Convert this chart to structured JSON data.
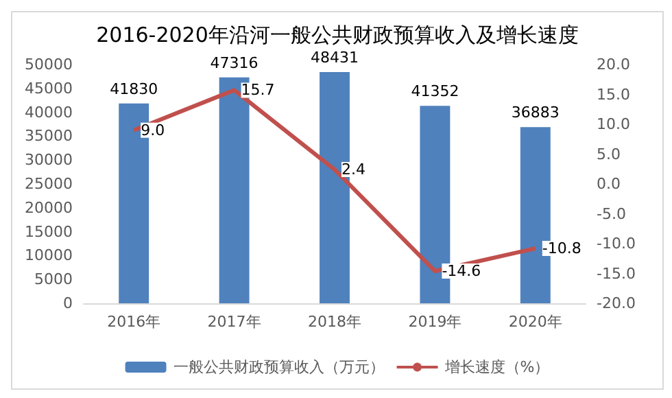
{
  "chart_data": {
    "type": "bar",
    "title": "2016-2020年沿河一般公共财政预算收入及增长速度",
    "categories": [
      "2016年",
      "2017年",
      "2018年",
      "2019年",
      "2020年"
    ],
    "series": [
      {
        "name": "一般公共财政预算收入（万元）",
        "color": "#4f81bd",
        "values": [
          41830,
          47316,
          48431,
          41352,
          36883
        ],
        "value_labels": [
          "41830",
          "47316",
          "48431",
          "41352",
          "36883"
        ]
      },
      {
        "name": "增长速度（%）",
        "type": "line",
        "axis": "y2",
        "color": "#c0504d",
        "values": [
          9.0,
          15.7,
          2.4,
          -14.6,
          -10.8
        ],
        "value_labels": [
          "9.0",
          "15.7",
          "2.4",
          "-14.6",
          "-10.8"
        ]
      }
    ],
    "ylim": [
      0,
      50000
    ],
    "yticks": [
      0,
      5000,
      10000,
      15000,
      20000,
      25000,
      30000,
      35000,
      40000,
      45000,
      50000
    ],
    "y2lim": [
      -20,
      20
    ],
    "y2ticks": [
      {
        "value": -20,
        "label": "-20.0"
      },
      {
        "value": -15,
        "label": "-15.0"
      },
      {
        "value": -10,
        "label": "-10.0"
      },
      {
        "value": -5,
        "label": "-5.0"
      },
      {
        "value": 0,
        "label": "0.0"
      },
      {
        "value": 5,
        "label": "5.0"
      },
      {
        "value": 10,
        "label": "10.0"
      },
      {
        "value": 15,
        "label": "15.0"
      },
      {
        "value": 20,
        "label": "20.0"
      }
    ],
    "grid": false,
    "legend": "bottom",
    "marker": "none"
  }
}
